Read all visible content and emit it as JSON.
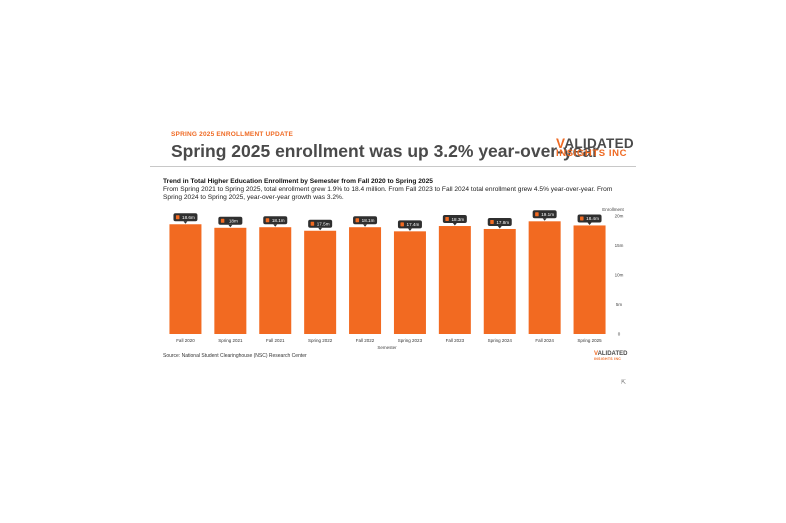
{
  "header": {
    "kicker": "SPRING 2025 ENROLLMENT UPDATE",
    "headline": "Spring 2025 enrollment was up 3.2% year-over-year"
  },
  "logo": {
    "line1_v": "V",
    "line1_rest": "ALIDATED",
    "line2": "INSIGHTS INC"
  },
  "mini_logo": {
    "line1_v": "V",
    "line1_rest": "ALIDATED",
    "line2": "INSIGHTS INC"
  },
  "chart_data": {
    "type": "bar",
    "title": "Trend in Total Higher Education Enrollment by Semester from Fall 2020 to Spring 2025",
    "subtitle": "From Spring 2021 to Spring 2025, total enrollment grew 1.9% to 18.4 million. From Fall 2023 to Fall 2024 total enrollment grew 4.5% year-over-year. From Spring 2024 to Spring 2025, year-over-year growth was 3.2%.",
    "categories": [
      "Fall 2020",
      "Spring 2021",
      "Fall 2021",
      "Spring 2022",
      "Fall 2022",
      "Spring 2023",
      "Fall 2023",
      "Spring 2024",
      "Fall 2024",
      "Spring 2025"
    ],
    "values": [
      18.6,
      18.0,
      18.1,
      17.5,
      18.1,
      17.4,
      18.3,
      17.8,
      19.1,
      18.4
    ],
    "data_labels": [
      "18.6m",
      "18m",
      "18.1m",
      "17.5m",
      "18.1m",
      "17.4m",
      "18.3m",
      "17.8m",
      "19.1m",
      "18.4m"
    ],
    "xlabel": "Semester",
    "ylabel": "Enrollment",
    "ylim": [
      0,
      20
    ],
    "yticks": [
      0,
      5,
      10,
      15,
      20
    ],
    "ytick_labels": [
      "0",
      "5m",
      "10m",
      "15m",
      "20m"
    ],
    "y_axis_side": "right",
    "grid": false,
    "bar_color": "#f26a21",
    "label_bg": "#2f2f2f",
    "source": "Source: National Student Clearinghouse (NSC) Research Center"
  },
  "colors": {
    "accent": "#ef6a23",
    "headline": "#4a4a4a",
    "rule": "#c8c8c8"
  }
}
